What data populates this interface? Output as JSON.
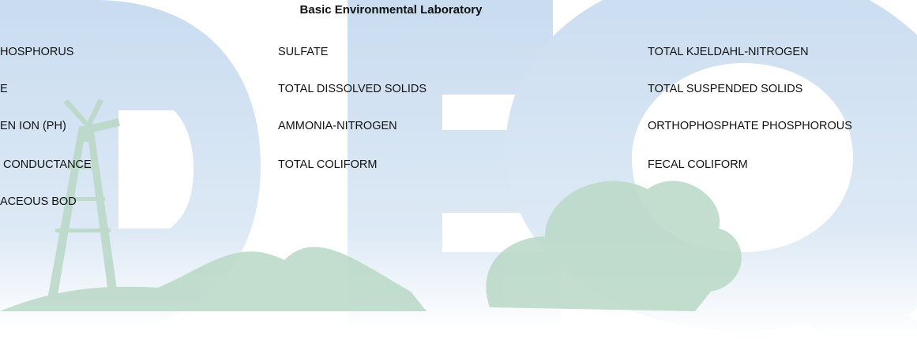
{
  "header": {
    "title": "Basic Environmental Laboratory"
  },
  "columns": [
    [
      "HOSPHORUS",
      "E",
      "EN ION (PH)",
      "CONDUCTANCE",
      "ACEOUS BOD"
    ],
    [
      "SULFATE",
      "TOTAL DISSOLVED SOLIDS",
      "AMMONIA-NITROGEN",
      "TOTAL COLIFORM"
    ],
    [
      "TOTAL KJELDAHL-NITROGEN",
      "TOTAL SUSPENDED SOLIDS",
      "ORTHOPHOSPHATE PHOSPHOROUS",
      "FECAL COLIFORM"
    ]
  ]
}
